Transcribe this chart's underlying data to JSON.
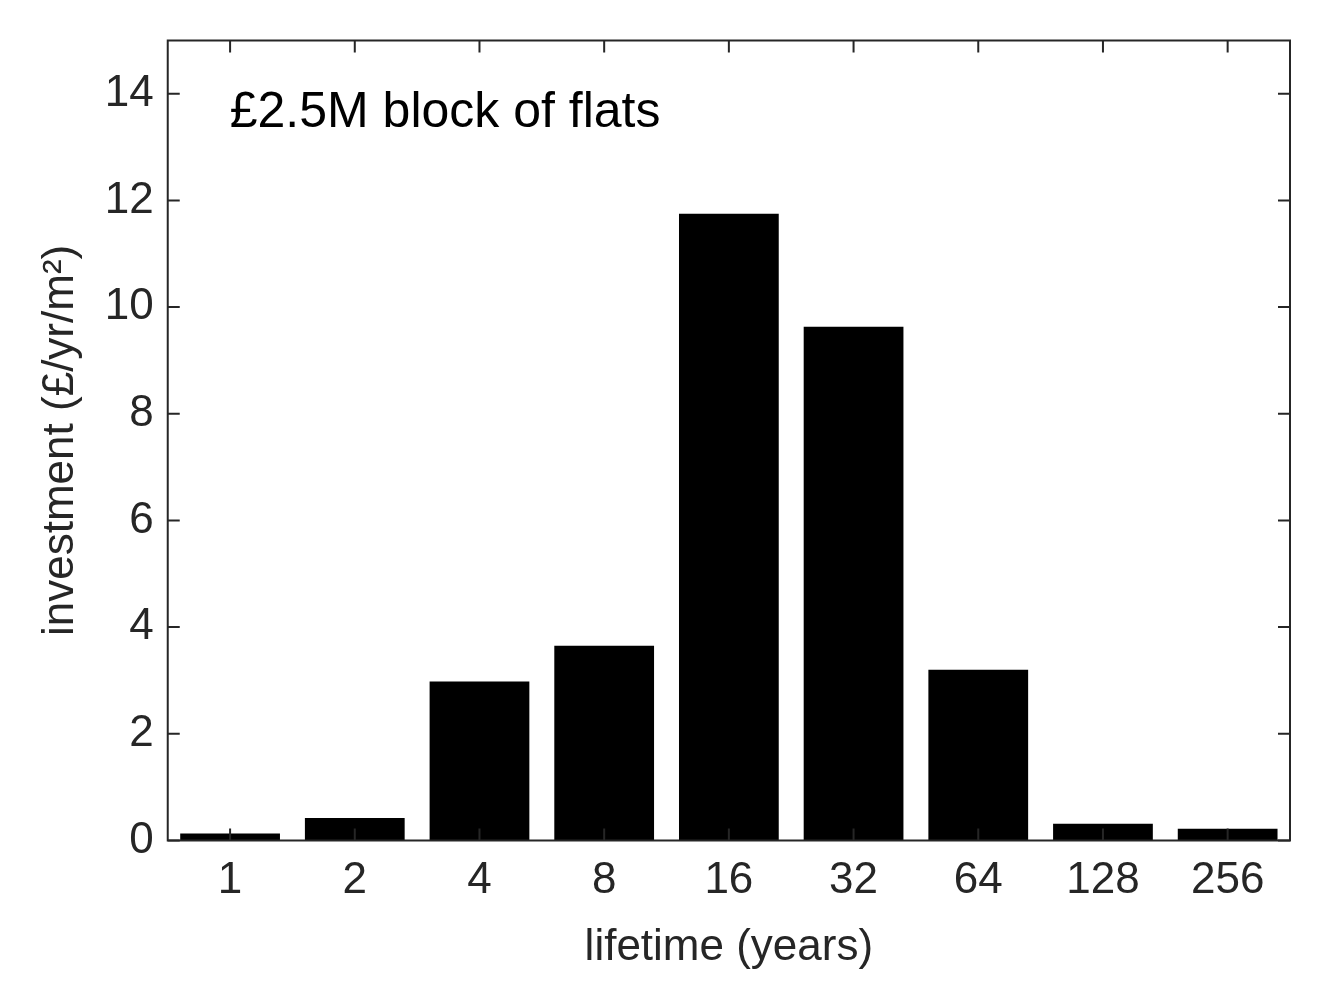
{
  "chart_data": {
    "type": "bar",
    "xlabel": "lifetime (years)",
    "ylabel": "investment (£/yr/m²)",
    "annotations": [
      "£2.5M block of flats"
    ],
    "categories": [
      "1",
      "2",
      "4",
      "8",
      "16",
      "32",
      "64",
      "128",
      "256"
    ],
    "values": [
      0.13,
      0.42,
      2.98,
      3.65,
      11.75,
      9.63,
      3.2,
      0.31,
      0.22
    ],
    "color": "#000000",
    "ylim": [
      0,
      15
    ],
    "yticks": [
      0,
      2,
      4,
      6,
      8,
      10,
      12,
      14
    ],
    "grid": false,
    "legend": false
  }
}
